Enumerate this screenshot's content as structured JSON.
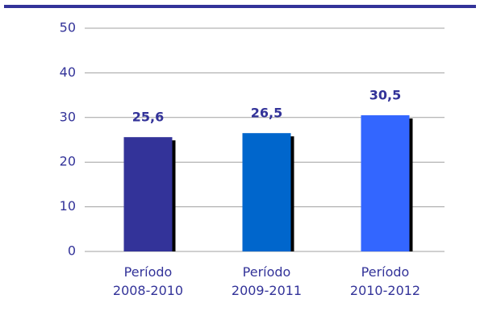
{
  "chart_data": {
    "type": "bar",
    "categories": [
      [
        "Período",
        "2008-2010"
      ],
      [
        "Período",
        "2009-2011"
      ],
      [
        "Período",
        "2010-2012"
      ]
    ],
    "values": [
      25.6,
      26.5,
      30.5
    ],
    "value_labels": [
      "25,6",
      "26,5",
      "30,5"
    ],
    "colors": [
      "#333399",
      "#0066cc",
      "#3366ff"
    ],
    "ylim": [
      0,
      50
    ],
    "yticks": [
      0,
      10,
      20,
      30,
      40,
      50
    ],
    "grid": true
  }
}
